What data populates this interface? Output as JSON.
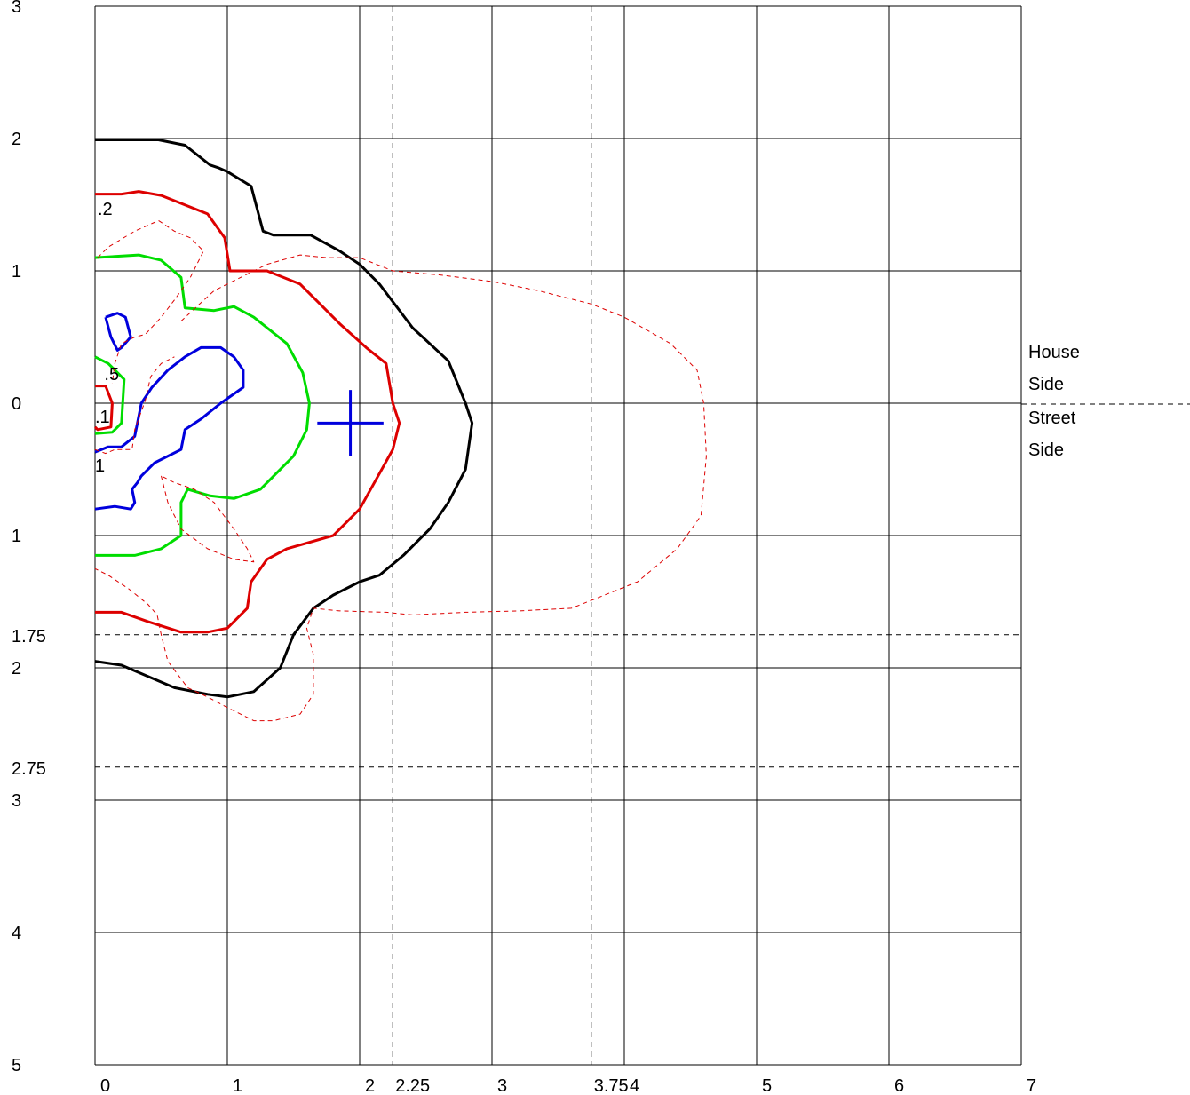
{
  "chart_data": {
    "type": "contour",
    "xlim": [
      0,
      7
    ],
    "ylim": [
      -5,
      3
    ],
    "y_axis_inverted_labels": true,
    "x_ticks": [
      {
        "value": 0,
        "label": "0"
      },
      {
        "value": 1,
        "label": "1"
      },
      {
        "value": 2,
        "label": "2"
      },
      {
        "value": 3,
        "label": "3"
      },
      {
        "value": 4,
        "label": "4"
      },
      {
        "value": 5,
        "label": "5"
      },
      {
        "value": 6,
        "label": "6"
      },
      {
        "value": 7,
        "label": "7"
      }
    ],
    "y_ticks": [
      {
        "value": 3,
        "label": "3"
      },
      {
        "value": 2,
        "label": "2"
      },
      {
        "value": 1,
        "label": "1"
      },
      {
        "value": 0,
        "label": "0"
      },
      {
        "value": -1,
        "label": "1"
      },
      {
        "value": -2,
        "label": "2"
      },
      {
        "value": -3,
        "label": "3"
      },
      {
        "value": -4,
        "label": "4"
      },
      {
        "value": -5,
        "label": "5"
      }
    ],
    "ref_x": [
      {
        "value": 2.25,
        "label": "2.25"
      },
      {
        "value": 3.75,
        "label": "3.75"
      }
    ],
    "ref_y": [
      {
        "value": -1.75,
        "label": "1.75"
      },
      {
        "value": -2.75,
        "label": "2.75"
      }
    ],
    "grid": true,
    "side_labels": {
      "house": "House",
      "side_a": "Side",
      "street": "Street",
      "side_b": "Side"
    },
    "contour_labels": [
      {
        "text": ".2",
        "x": 0.02,
        "y": 1.47,
        "color": "#000000"
      },
      {
        "text": ".5",
        "x": 0.07,
        "y": 0.22,
        "color": "#000000"
      },
      {
        "text": ".1",
        "x": 0.0,
        "y": -0.1,
        "color": "#000000"
      },
      {
        "text": "1",
        "x": 0.0,
        "y": -0.47,
        "color": "#000000"
      }
    ],
    "center_marker": {
      "x": 1.93,
      "y": -0.15,
      "color": "#0000dd"
    },
    "series": [
      {
        "color": "#000000",
        "style": "solid",
        "points": [
          [
            0,
            1.99
          ],
          [
            0.48,
            1.99
          ],
          [
            0.68,
            1.95
          ],
          [
            0.87,
            1.8
          ],
          [
            0.93,
            1.78
          ],
          [
            1.0,
            1.75
          ],
          [
            1.18,
            1.64
          ],
          [
            1.27,
            1.3
          ],
          [
            1.35,
            1.27
          ],
          [
            1.63,
            1.27
          ],
          [
            1.85,
            1.15
          ],
          [
            2.0,
            1.05
          ],
          [
            2.15,
            0.9
          ],
          [
            2.4,
            0.57
          ],
          [
            2.67,
            0.32
          ],
          [
            2.8,
            0.0
          ],
          [
            2.85,
            -0.15
          ],
          [
            2.8,
            -0.5
          ],
          [
            2.67,
            -0.75
          ],
          [
            2.53,
            -0.95
          ],
          [
            2.33,
            -1.15
          ],
          [
            2.15,
            -1.3
          ],
          [
            2.0,
            -1.35
          ],
          [
            1.8,
            -1.45
          ],
          [
            1.65,
            -1.55
          ],
          [
            1.5,
            -1.75
          ],
          [
            1.4,
            -2.0
          ],
          [
            1.2,
            -2.18
          ],
          [
            1.0,
            -2.22
          ],
          [
            0.85,
            -2.2
          ],
          [
            0.6,
            -2.15
          ],
          [
            0.2,
            -1.98
          ],
          [
            0,
            -1.95
          ]
        ]
      },
      {
        "color": "#dd0000",
        "style": "solid",
        "points": [
          [
            0,
            1.58
          ],
          [
            0.2,
            1.58
          ],
          [
            0.33,
            1.6
          ],
          [
            0.5,
            1.57
          ],
          [
            0.85,
            1.43
          ],
          [
            0.98,
            1.25
          ],
          [
            1.02,
            1.0
          ],
          [
            1.3,
            1.0
          ],
          [
            1.55,
            0.9
          ],
          [
            1.85,
            0.6
          ],
          [
            2.05,
            0.42
          ],
          [
            2.2,
            0.3
          ],
          [
            2.25,
            0.0
          ],
          [
            2.3,
            -0.15
          ],
          [
            2.25,
            -0.35
          ],
          [
            2.0,
            -0.8
          ],
          [
            1.8,
            -1.0
          ],
          [
            1.45,
            -1.1
          ],
          [
            1.3,
            -1.18
          ],
          [
            1.18,
            -1.35
          ],
          [
            1.15,
            -1.55
          ],
          [
            1.0,
            -1.7
          ],
          [
            0.85,
            -1.73
          ],
          [
            0.65,
            -1.73
          ],
          [
            0.4,
            -1.65
          ],
          [
            0.2,
            -1.58
          ],
          [
            0,
            -1.58
          ]
        ]
      },
      {
        "color": "#00dd00",
        "style": "solid",
        "points": [
          [
            0,
            1.1
          ],
          [
            0.33,
            1.12
          ],
          [
            0.5,
            1.08
          ],
          [
            0.65,
            0.95
          ],
          [
            0.68,
            0.72
          ],
          [
            0.9,
            0.7
          ],
          [
            1.05,
            0.73
          ],
          [
            1.2,
            0.65
          ],
          [
            1.45,
            0.45
          ],
          [
            1.57,
            0.23
          ],
          [
            1.62,
            0.0
          ],
          [
            1.6,
            -0.2
          ],
          [
            1.5,
            -0.4
          ],
          [
            1.25,
            -0.65
          ],
          [
            1.05,
            -0.72
          ],
          [
            0.87,
            -0.7
          ],
          [
            0.7,
            -0.65
          ],
          [
            0.65,
            -0.75
          ],
          [
            0.65,
            -1.0
          ],
          [
            0.5,
            -1.1
          ],
          [
            0.3,
            -1.15
          ],
          [
            0,
            -1.15
          ]
        ]
      },
      {
        "color": "#dd0000",
        "style": "solid",
        "points": [
          [
            0,
            0.13
          ],
          [
            0.08,
            0.13
          ],
          [
            0.13,
            0.0
          ],
          [
            0.12,
            -0.18
          ],
          [
            0.02,
            -0.2
          ],
          [
            0,
            -0.18
          ]
        ]
      },
      {
        "color": "#00dd00",
        "style": "solid",
        "points": [
          [
            0,
            0.35
          ],
          [
            0.1,
            0.3
          ],
          [
            0.22,
            0.18
          ],
          [
            0.2,
            -0.15
          ],
          [
            0.13,
            -0.22
          ],
          [
            0,
            -0.23
          ]
        ]
      },
      {
        "color": "#0000dd",
        "style": "solid",
        "points": [
          [
            0.08,
            0.65
          ],
          [
            0.17,
            0.68
          ],
          [
            0.23,
            0.65
          ],
          [
            0.27,
            0.5
          ],
          [
            0.2,
            0.42
          ],
          [
            0.17,
            0.4
          ],
          [
            0.12,
            0.5
          ],
          [
            0.08,
            0.65
          ]
        ]
      },
      {
        "color": "#0000dd",
        "style": "solid",
        "points": [
          [
            0.55,
            0.25
          ],
          [
            0.68,
            0.35
          ],
          [
            0.8,
            0.42
          ],
          [
            0.95,
            0.42
          ],
          [
            1.05,
            0.35
          ],
          [
            1.12,
            0.25
          ],
          [
            1.12,
            0.12
          ],
          [
            0.95,
            0.0
          ],
          [
            0.8,
            -0.12
          ],
          [
            0.68,
            -0.2
          ],
          [
            0.65,
            -0.35
          ],
          [
            0.45,
            -0.45
          ],
          [
            0.35,
            -0.55
          ],
          [
            0.32,
            -0.6
          ],
          [
            0.28,
            -0.65
          ],
          [
            0.3,
            -0.75
          ],
          [
            0.27,
            -0.8
          ],
          [
            0.15,
            -0.78
          ],
          [
            0,
            -0.8
          ]
        ]
      },
      {
        "color": "#0000dd",
        "style": "solid",
        "points": [
          [
            0.55,
            0.25
          ],
          [
            0.43,
            0.12
          ],
          [
            0.35,
            0.0
          ],
          [
            0.3,
            -0.25
          ],
          [
            0.2,
            -0.33
          ],
          [
            0.1,
            -0.33
          ],
          [
            0,
            -0.37
          ]
        ]
      },
      {
        "color": "#dd0000",
        "style": "dashed",
        "points": [
          [
            0.02,
            1.1
          ],
          [
            0.1,
            1.18
          ],
          [
            0.3,
            1.3
          ],
          [
            0.48,
            1.38
          ],
          [
            0.6,
            1.3
          ],
          [
            0.72,
            1.25
          ],
          [
            0.82,
            1.15
          ],
          [
            0.72,
            0.95
          ],
          [
            0.6,
            0.78
          ],
          [
            0.5,
            0.65
          ],
          [
            0.38,
            0.52
          ],
          [
            0.3,
            0.5
          ],
          [
            0.2,
            0.45
          ],
          [
            0.15,
            0.3
          ],
          [
            0.13,
            0.15
          ]
        ]
      },
      {
        "color": "#dd0000",
        "style": "dashed",
        "points": [
          [
            0.65,
            0.62
          ],
          [
            0.9,
            0.85
          ],
          [
            1.1,
            0.95
          ],
          [
            1.3,
            1.05
          ],
          [
            1.55,
            1.12
          ],
          [
            1.75,
            1.1
          ],
          [
            2.0,
            1.1
          ],
          [
            2.25,
            1.0
          ],
          [
            2.6,
            0.97
          ],
          [
            3.0,
            0.92
          ],
          [
            3.35,
            0.85
          ],
          [
            3.75,
            0.75
          ],
          [
            4.0,
            0.65
          ],
          [
            4.35,
            0.45
          ],
          [
            4.55,
            0.25
          ],
          [
            4.6,
            0.0
          ],
          [
            4.62,
            -0.4
          ],
          [
            4.58,
            -0.85
          ],
          [
            4.4,
            -1.1
          ],
          [
            4.1,
            -1.35
          ],
          [
            3.85,
            -1.45
          ],
          [
            3.6,
            -1.55
          ],
          [
            3.2,
            -1.57
          ],
          [
            2.8,
            -1.58
          ],
          [
            2.4,
            -1.6
          ],
          [
            2.2,
            -1.58
          ],
          [
            1.85,
            -1.57
          ],
          [
            1.65,
            -1.55
          ],
          [
            1.6,
            -1.7
          ],
          [
            1.65,
            -1.9
          ],
          [
            1.65,
            -2.2
          ],
          [
            1.55,
            -2.35
          ],
          [
            1.35,
            -2.4
          ],
          [
            1.2,
            -2.4
          ],
          [
            1.0,
            -2.3
          ],
          [
            0.85,
            -2.22
          ],
          [
            0.7,
            -2.15
          ],
          [
            0.55,
            -1.95
          ],
          [
            0.5,
            -1.75
          ],
          [
            0.47,
            -1.6
          ],
          [
            0.4,
            -1.52
          ],
          [
            0.25,
            -1.4
          ],
          [
            0.1,
            -1.3
          ],
          [
            0.0,
            -1.25
          ]
        ]
      },
      {
        "color": "#dd0000",
        "style": "dashed",
        "points": [
          [
            0.0,
            -0.35
          ],
          [
            0.08,
            -0.38
          ],
          [
            0.15,
            -0.35
          ],
          [
            0.28,
            -0.35
          ],
          [
            0.3,
            -0.2
          ],
          [
            0.38,
            0.02
          ],
          [
            0.42,
            0.2
          ],
          [
            0.5,
            0.3
          ],
          [
            0.6,
            0.35
          ]
        ]
      },
      {
        "color": "#dd0000",
        "style": "dashed",
        "points": [
          [
            0.5,
            -0.55
          ],
          [
            0.55,
            -0.75
          ],
          [
            0.65,
            -0.95
          ],
          [
            0.85,
            -1.1
          ],
          [
            1.05,
            -1.18
          ],
          [
            1.2,
            -1.2
          ],
          [
            1.15,
            -1.1
          ],
          [
            1.05,
            -0.95
          ],
          [
            0.9,
            -0.75
          ],
          [
            0.75,
            -0.65
          ],
          [
            0.6,
            -0.6
          ],
          [
            0.5,
            -0.55
          ]
        ]
      }
    ]
  }
}
